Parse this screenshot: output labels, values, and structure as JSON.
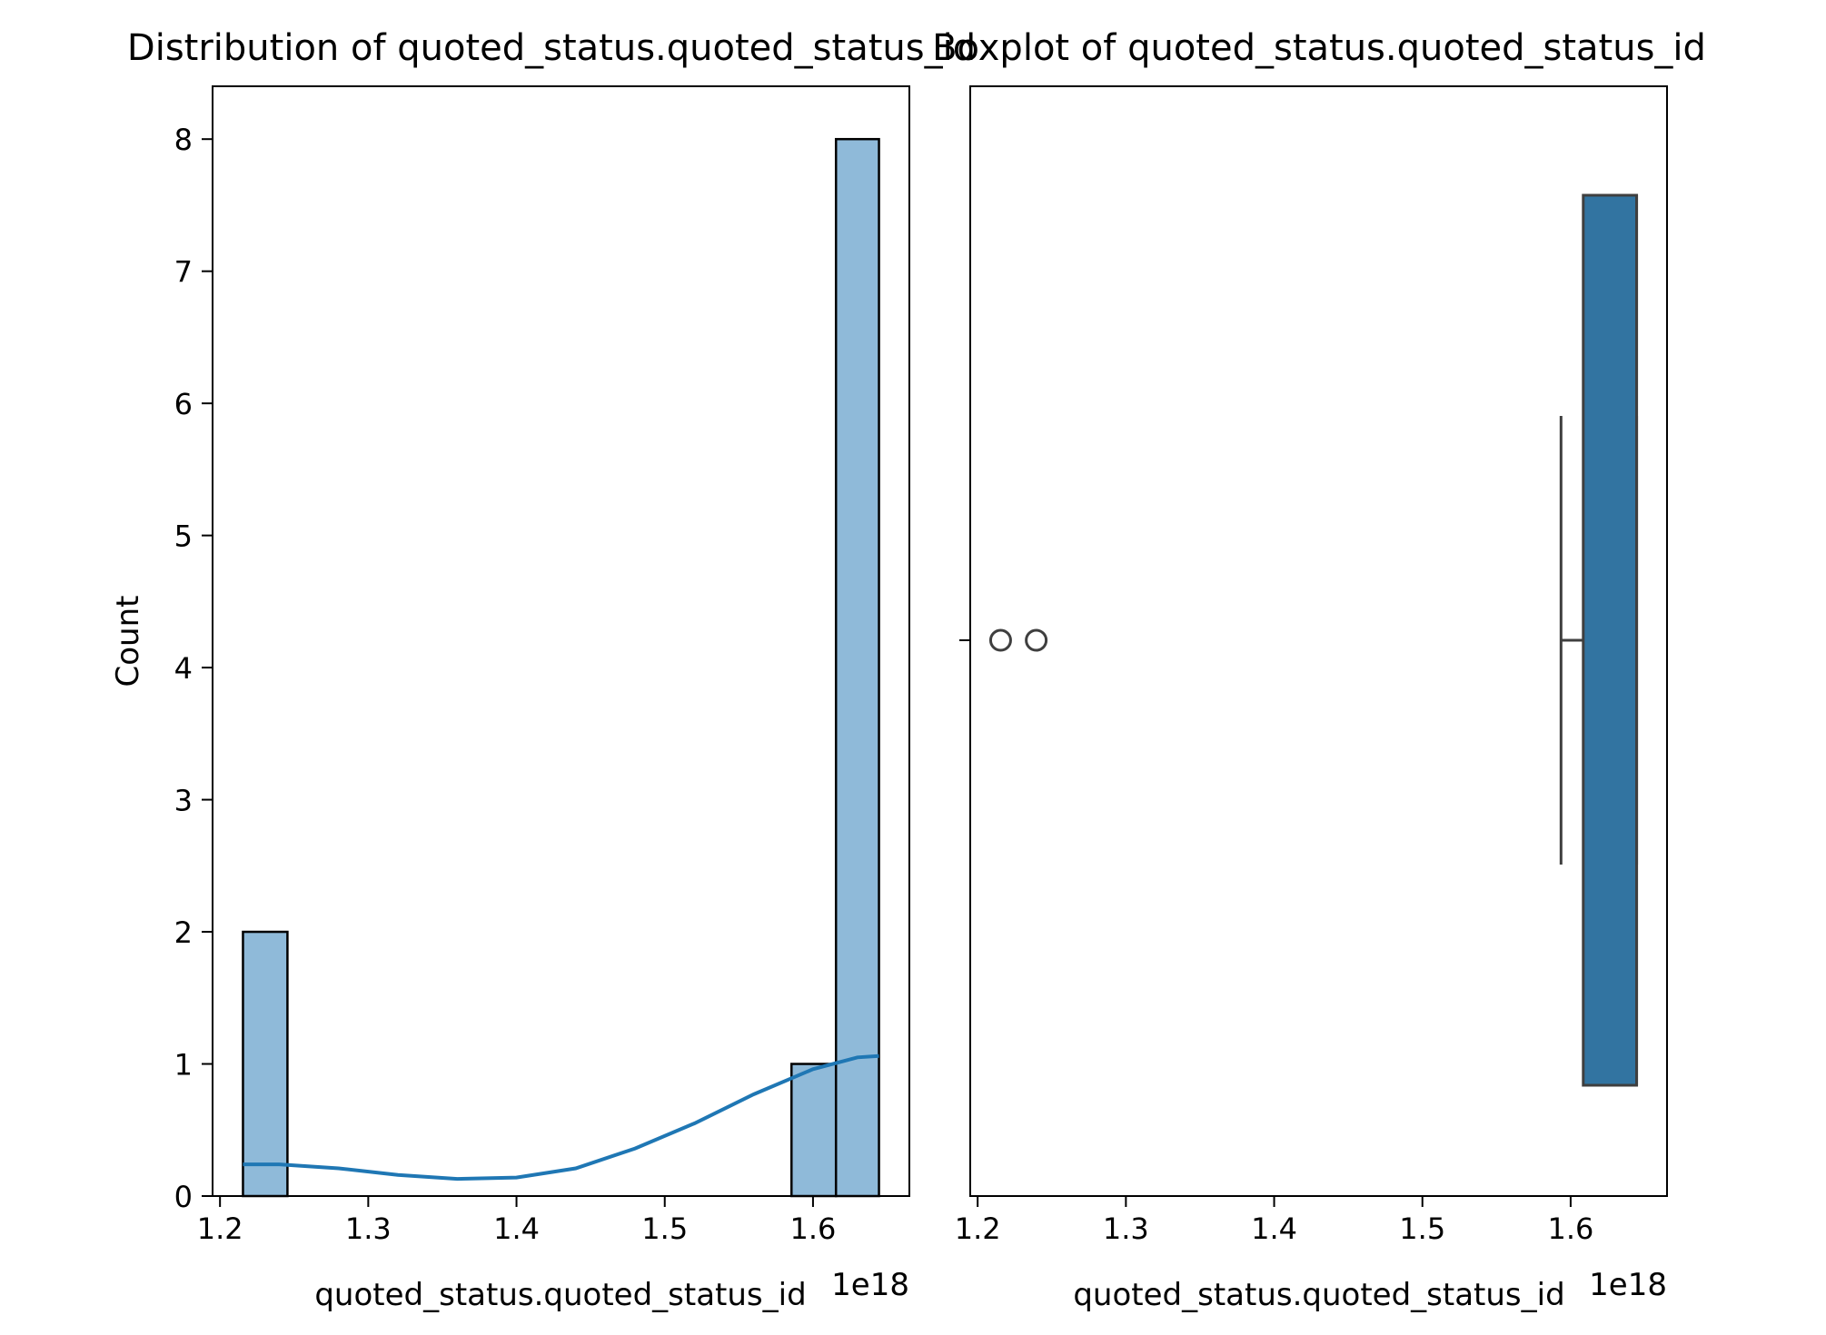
{
  "chart_data": [
    {
      "type": "histogram",
      "title": "Distribution of quoted_status.quoted_status_id",
      "xlabel": "quoted_status.quoted_status_id",
      "ylabel": "Count",
      "x_offset_label": "1e18",
      "xlim": [
        1.195,
        1.665
      ],
      "ylim": [
        0,
        8.4
      ],
      "xticks": [
        1.2,
        1.3,
        1.4,
        1.5,
        1.6
      ],
      "yticks": [
        0,
        1,
        2,
        3,
        4,
        5,
        6,
        7,
        8
      ],
      "bin_edges": [
        1.2155,
        1.2455,
        1.2755,
        1.3055,
        1.3355,
        1.3655,
        1.3955,
        1.4255,
        1.4555,
        1.4855,
        1.5155,
        1.5455,
        1.5855,
        1.6155,
        1.6445
      ],
      "counts": [
        2,
        0,
        0,
        0,
        0,
        0,
        0,
        0,
        0,
        0,
        0,
        0,
        1,
        8
      ],
      "bar_color": "#8fbad9",
      "kde": {
        "color": "#1f77b4",
        "x": [
          1.2155,
          1.24,
          1.28,
          1.32,
          1.36,
          1.4,
          1.44,
          1.48,
          1.52,
          1.56,
          1.6,
          1.63,
          1.6445
        ],
        "y": [
          0.24,
          0.24,
          0.21,
          0.16,
          0.13,
          0.14,
          0.21,
          0.36,
          0.55,
          0.77,
          0.96,
          1.05,
          1.06
        ]
      },
      "grid": false
    },
    {
      "type": "boxplot",
      "title": "Boxplot of quoted_status.quoted_status_id",
      "xlabel": "quoted_status.quoted_status_id",
      "x_offset_label": "1e18",
      "xlim": [
        1.195,
        1.665
      ],
      "xticks": [
        1.2,
        1.3,
        1.4,
        1.5,
        1.6
      ],
      "box": {
        "whisker_low": 1.5935,
        "q1": 1.6085,
        "median": 1.6445,
        "q3": 1.6445,
        "whisker_high": 1.6445
      },
      "outliers": [
        1.2155,
        1.2395
      ],
      "box_color": "#3274a1",
      "grid": false
    }
  ]
}
